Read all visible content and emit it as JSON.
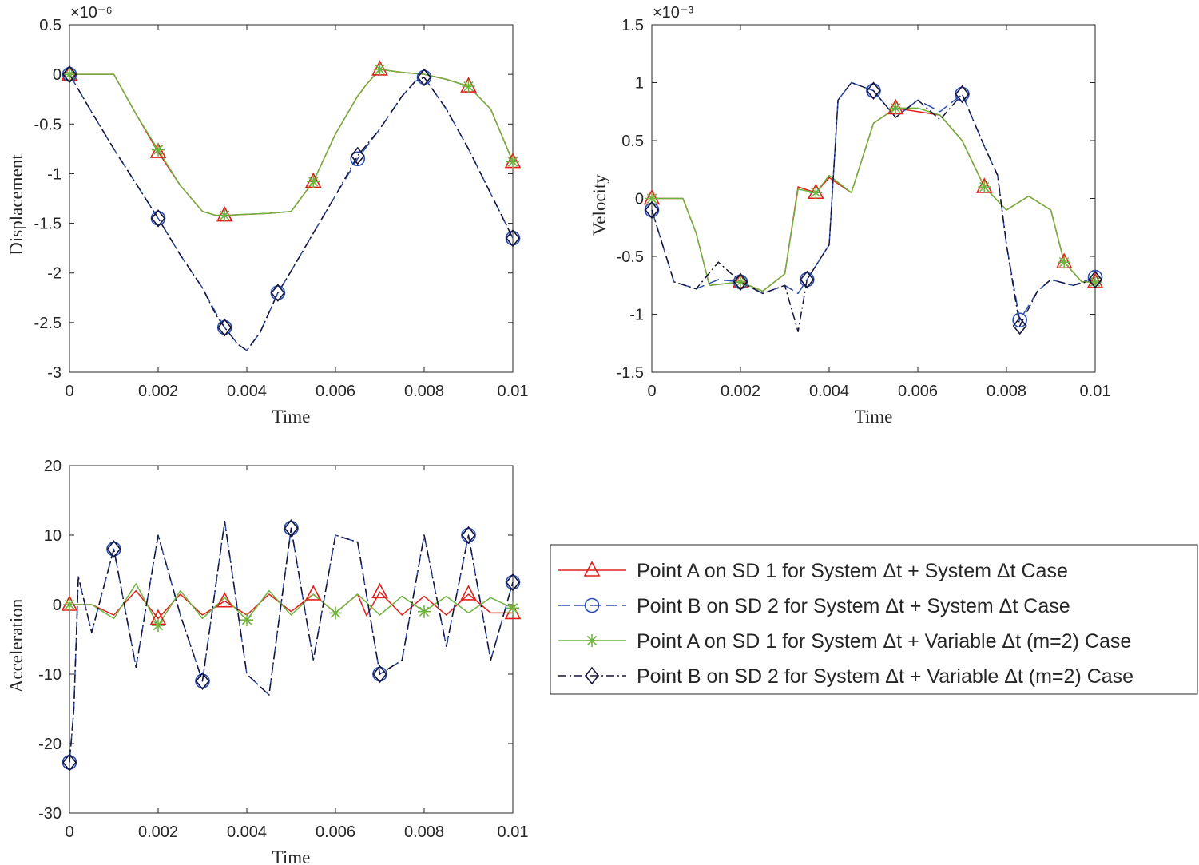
{
  "chart_data": [
    {
      "type": "line",
      "id": "displacement",
      "xlabel": "Time",
      "ylabel": "Displacement",
      "exponent": "×10⁻⁶",
      "xlim": [
        0,
        0.01
      ],
      "ylim": [
        -3,
        0.5
      ],
      "xticks": [
        0,
        0.002,
        0.004,
        0.006,
        0.008,
        0.01
      ],
      "xtick_labels": [
        "0",
        "0.002",
        "0.004",
        "0.006",
        "0.008",
        "0.01"
      ],
      "yticks": [
        0.5,
        0,
        -0.5,
        -1,
        -1.5,
        -2,
        -2.5,
        -3
      ],
      "ytick_labels": [
        "0.5",
        "0",
        "-0.5",
        "-1",
        "-1.5",
        "-2",
        "-2.5",
        "-3"
      ],
      "series": [
        {
          "name": "Point A on SD 1 for System Δt + System Δt Case",
          "x": [
            0,
            0.0005,
            0.001,
            0.0015,
            0.002,
            0.0025,
            0.003,
            0.0033,
            0.0035,
            0.004,
            0.0045,
            0.005,
            0.0055,
            0.006,
            0.0065,
            0.0067,
            0.007,
            0.0075,
            0.008,
            0.0085,
            0.009,
            0.0095,
            0.01
          ],
          "values": [
            0,
            0,
            0,
            -0.4,
            -0.78,
            -1.12,
            -1.38,
            -1.42,
            -1.42,
            -1.41,
            -1.4,
            -1.38,
            -1.08,
            -0.6,
            -0.22,
            -0.1,
            0.05,
            0.02,
            0,
            -0.05,
            -0.12,
            -0.35,
            -0.88
          ]
        },
        {
          "name": "Point B on SD 2 for System Δt + System Δt Case",
          "x": [
            0,
            0.0005,
            0.001,
            0.0015,
            0.002,
            0.0025,
            0.003,
            0.0033,
            0.0035,
            0.0038,
            0.004,
            0.0043,
            0.0047,
            0.005,
            0.0055,
            0.006,
            0.0065,
            0.007,
            0.0075,
            0.0078,
            0.008,
            0.0085,
            0.009,
            0.0095,
            0.01
          ],
          "values": [
            0,
            -0.38,
            -0.75,
            -1.1,
            -1.45,
            -1.82,
            -2.15,
            -2.4,
            -2.55,
            -2.72,
            -2.78,
            -2.6,
            -2.2,
            -1.98,
            -1.6,
            -1.22,
            -0.85,
            -0.55,
            -0.22,
            -0.07,
            -0.03,
            -0.35,
            -0.75,
            -1.2,
            -1.65
          ]
        },
        {
          "name": "Point A on SD 1 for System Δt + Variable Δt (m=2) Case",
          "x": [
            0,
            0.0005,
            0.001,
            0.0015,
            0.002,
            0.0025,
            0.003,
            0.0033,
            0.0035,
            0.004,
            0.0045,
            0.005,
            0.0055,
            0.006,
            0.0065,
            0.0067,
            0.007,
            0.0075,
            0.008,
            0.0085,
            0.009,
            0.0095,
            0.01
          ],
          "values": [
            0,
            0,
            0,
            -0.4,
            -0.76,
            -1.12,
            -1.38,
            -1.42,
            -1.42,
            -1.41,
            -1.4,
            -1.38,
            -1.08,
            -0.6,
            -0.22,
            -0.1,
            0.05,
            0.02,
            0,
            -0.05,
            -0.12,
            -0.35,
            -0.88
          ]
        },
        {
          "name": "Point B on SD 2 for System Δt + Variable Δt (m=2) Case",
          "x": [
            0,
            0.0005,
            0.001,
            0.0015,
            0.002,
            0.0025,
            0.003,
            0.0033,
            0.0035,
            0.0038,
            0.004,
            0.0043,
            0.0047,
            0.005,
            0.0055,
            0.006,
            0.0065,
            0.007,
            0.0075,
            0.0078,
            0.008,
            0.0085,
            0.009,
            0.0095,
            0.01
          ],
          "values": [
            0,
            -0.38,
            -0.75,
            -1.1,
            -1.45,
            -1.82,
            -2.15,
            -2.42,
            -2.55,
            -2.72,
            -2.78,
            -2.6,
            -2.2,
            -1.98,
            -1.6,
            -1.22,
            -0.82,
            -0.55,
            -0.22,
            -0.07,
            -0.03,
            -0.35,
            -0.75,
            -1.2,
            -1.65
          ]
        }
      ]
    },
    {
      "type": "line",
      "id": "velocity",
      "xlabel": "Time",
      "ylabel": "Velocity",
      "exponent": "×10⁻³",
      "xlim": [
        0,
        0.01
      ],
      "ylim": [
        -1.5,
        1.5
      ],
      "xticks": [
        0,
        0.002,
        0.004,
        0.006,
        0.008,
        0.01
      ],
      "xtick_labels": [
        "0",
        "0.002",
        "0.004",
        "0.006",
        "0.008",
        "0.01"
      ],
      "yticks": [
        1.5,
        1,
        0.5,
        0,
        -0.5,
        -1,
        -1.5
      ],
      "ytick_labels": [
        "1.5",
        "1",
        "0.5",
        "0",
        "-0.5",
        "-1",
        "-1.5"
      ],
      "series": [
        {
          "name": "Point A on SD 1 for System Δt + System Δt Case",
          "x": [
            0,
            0.0007,
            0.001,
            0.0013,
            0.002,
            0.0025,
            0.003,
            0.0033,
            0.0037,
            0.004,
            0.0045,
            0.005,
            0.0055,
            0.006,
            0.0065,
            0.007,
            0.0075,
            0.008,
            0.0085,
            0.009,
            0.0093,
            0.0097,
            0.01
          ],
          "values": [
            0,
            0,
            -0.3,
            -0.75,
            -0.72,
            -0.8,
            -0.65,
            0.1,
            0.05,
            0.18,
            0.05,
            0.65,
            0.78,
            0.75,
            0.72,
            0.5,
            0.1,
            -0.1,
            0.02,
            -0.1,
            -0.55,
            -0.72,
            -0.72
          ]
        },
        {
          "name": "Point B on SD 2 for System Δt + System Δt Case",
          "x": [
            0,
            0.0005,
            0.001,
            0.0015,
            0.002,
            0.0025,
            0.003,
            0.0033,
            0.0035,
            0.004,
            0.0042,
            0.0045,
            0.005,
            0.0055,
            0.006,
            0.0065,
            0.007,
            0.0075,
            0.0078,
            0.008,
            0.0083,
            0.0087,
            0.009,
            0.0095,
            0.01
          ],
          "values": [
            -0.1,
            -0.72,
            -0.78,
            -0.7,
            -0.72,
            -0.82,
            -0.75,
            -0.82,
            -0.7,
            -0.4,
            0.85,
            1.0,
            0.93,
            0.7,
            0.85,
            0.75,
            0.9,
            0.45,
            0.2,
            -0.4,
            -1.05,
            -0.8,
            -0.7,
            -0.75,
            -0.68
          ]
        },
        {
          "name": "Point A on SD 1 for System Δt + Variable Δt (m=2) Case",
          "x": [
            0,
            0.0007,
            0.001,
            0.0013,
            0.002,
            0.0025,
            0.003,
            0.0033,
            0.0037,
            0.004,
            0.0045,
            0.005,
            0.0055,
            0.006,
            0.0065,
            0.007,
            0.0075,
            0.008,
            0.0085,
            0.009,
            0.0093,
            0.0097,
            0.01
          ],
          "values": [
            0,
            0,
            -0.3,
            -0.75,
            -0.72,
            -0.8,
            -0.65,
            0.08,
            0.05,
            0.2,
            0.05,
            0.65,
            0.78,
            0.78,
            0.72,
            0.5,
            0.1,
            -0.1,
            0.02,
            -0.1,
            -0.55,
            -0.72,
            -0.72
          ]
        },
        {
          "name": "Point B on SD 2 for System Δt + Variable Δt (m=2) Case",
          "x": [
            0,
            0.0005,
            0.001,
            0.0015,
            0.002,
            0.0025,
            0.003,
            0.0033,
            0.0035,
            0.004,
            0.0042,
            0.0045,
            0.005,
            0.0055,
            0.006,
            0.0065,
            0.007,
            0.0075,
            0.0078,
            0.008,
            0.0083,
            0.0087,
            0.009,
            0.0095,
            0.01
          ],
          "values": [
            -0.1,
            -0.72,
            -0.78,
            -0.55,
            -0.72,
            -0.82,
            -0.75,
            -1.15,
            -0.7,
            -0.4,
            0.85,
            1.0,
            0.93,
            0.7,
            0.85,
            0.68,
            0.9,
            0.45,
            0.2,
            -0.4,
            -1.1,
            -0.8,
            -0.7,
            -0.75,
            -0.7
          ]
        }
      ]
    },
    {
      "type": "line",
      "id": "acceleration",
      "xlabel": "Time",
      "ylabel": "Acceleration",
      "xlim": [
        0,
        0.01
      ],
      "ylim": [
        -30,
        20
      ],
      "xticks": [
        0,
        0.002,
        0.004,
        0.006,
        0.008,
        0.01
      ],
      "xtick_labels": [
        "0",
        "0.002",
        "0.004",
        "0.006",
        "0.008",
        "0.01"
      ],
      "yticks": [
        20,
        10,
        0,
        -10,
        -20,
        -30
      ],
      "ytick_labels": [
        "20",
        "10",
        "0",
        "-10",
        "-20",
        "-30"
      ],
      "series": [
        {
          "name": "Point A on SD 1 for System Δt + System Δt Case",
          "x": [
            0,
            0.0005,
            0.001,
            0.0015,
            0.002,
            0.0025,
            0.003,
            0.0033,
            0.0035,
            0.004,
            0.0045,
            0.005,
            0.0055,
            0.006,
            0.0065,
            0.0067,
            0.007,
            0.0075,
            0.008,
            0.0085,
            0.009,
            0.0095,
            0.01
          ],
          "values": [
            0,
            0,
            -1.5,
            2,
            -2,
            1.5,
            -1.5,
            -0.3,
            0.5,
            -1.5,
            1.5,
            -1,
            1.5,
            -1.2,
            1.5,
            -1.6,
            1.8,
            -1.5,
            1.2,
            -1.5,
            1.5,
            -1.2,
            -1.2
          ]
        },
        {
          "name": "Point B on SD 2 for System Δt + System Δt Case",
          "x": [
            0,
            0.0001,
            0.0002,
            0.0005,
            0.001,
            0.0015,
            0.002,
            0.0025,
            0.003,
            0.0035,
            0.004,
            0.0045,
            0.005,
            0.0055,
            0.006,
            0.0065,
            0.007,
            0.0075,
            0.008,
            0.0085,
            0.009,
            0.0095,
            0.01
          ],
          "values": [
            -22.7,
            -15,
            4,
            -4,
            8,
            -9,
            10,
            -1.5,
            -11,
            12,
            -10,
            -13,
            11,
            -8,
            10,
            9,
            -10,
            -8,
            10,
            -6,
            10,
            -8,
            3.2
          ]
        },
        {
          "name": "Point A on SD 1 for System Δt + Variable Δt (m=2) Case",
          "x": [
            0,
            0.0005,
            0.001,
            0.0015,
            0.002,
            0.0025,
            0.003,
            0.0035,
            0.004,
            0.0045,
            0.005,
            0.0055,
            0.006,
            0.0065,
            0.007,
            0.0075,
            0.008,
            0.0085,
            0.009,
            0.0095,
            0.01
          ],
          "values": [
            0,
            0,
            -2,
            3,
            -3,
            2,
            -2,
            1,
            -2.2,
            2,
            -1.5,
            1.5,
            -1.2,
            1.5,
            -1.5,
            1.2,
            -1,
            1.2,
            -1.2,
            1,
            -0.5
          ]
        },
        {
          "name": "Point B on SD 2 for System Δt + Variable Δt (m=2) Case",
          "x": [
            0,
            0.0001,
            0.0002,
            0.0005,
            0.001,
            0.0015,
            0.002,
            0.0025,
            0.003,
            0.0035,
            0.004,
            0.0045,
            0.005,
            0.0055,
            0.006,
            0.0065,
            0.007,
            0.0075,
            0.008,
            0.0085,
            0.009,
            0.0095,
            0.01
          ],
          "values": [
            -22.7,
            -15,
            4,
            -4,
            8,
            -9,
            10,
            -1.5,
            -11,
            12,
            -10,
            -13,
            11,
            -8,
            10,
            9,
            -10,
            -8,
            10,
            -6,
            10,
            -8,
            3.2
          ]
        }
      ]
    }
  ],
  "series_styles": [
    {
      "color": "#e0201b",
      "dash": "",
      "marker": "triangle"
    },
    {
      "color": "#2b4faf",
      "dash": "14 6",
      "marker": "circle"
    },
    {
      "color": "#6fb33f",
      "dash": "",
      "marker": "asterisk"
    },
    {
      "color": "#14143c",
      "dash": "10 4 2 4",
      "marker": "diamond"
    }
  ],
  "legend": {
    "entries": [
      "Point A on SD 1 for System Δt + System Δt Case",
      "Point B on SD 2 for System Δt + System Δt Case",
      "Point A on SD 1 for System Δt + Variable Δt (m=2) Case",
      "Point B on SD 2 for System Δt + Variable Δt (m=2) Case"
    ]
  }
}
